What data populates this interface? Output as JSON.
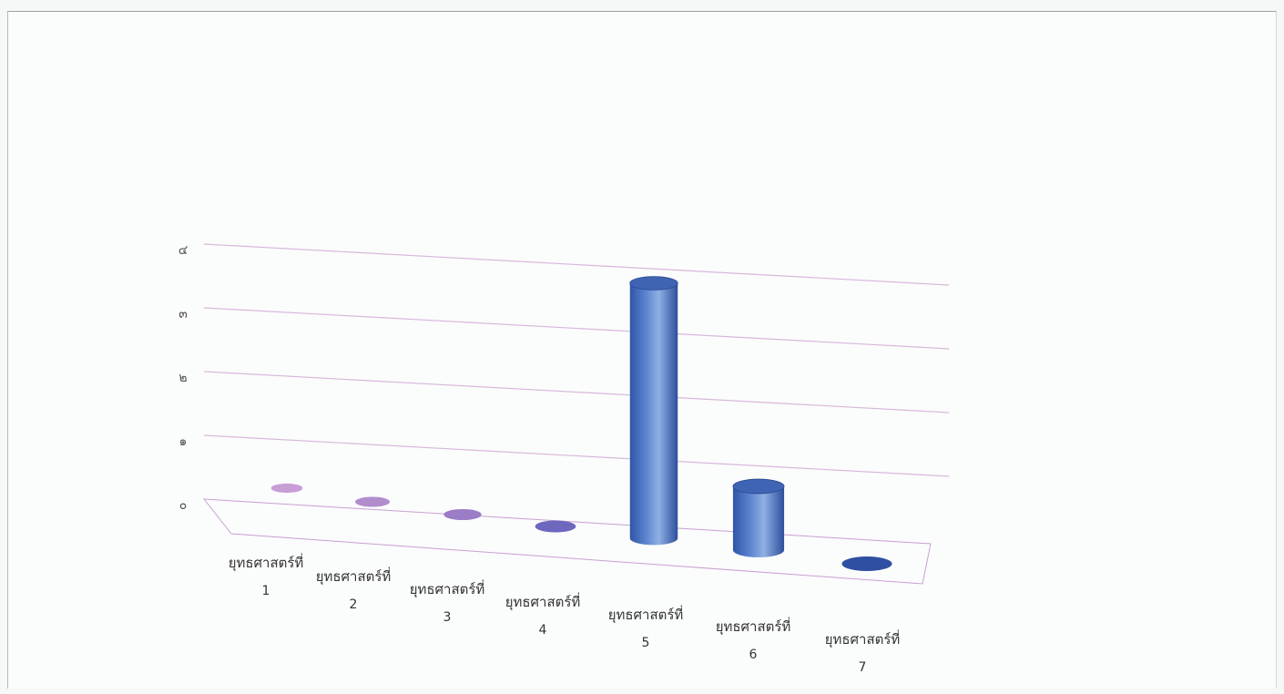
{
  "chart_data": {
    "type": "bar",
    "style": "3d-cylinder",
    "categories": [
      [
        "ยุทธศาสตร์ที่",
        "1"
      ],
      [
        "ยุทธศาสตร์ที่",
        "2"
      ],
      [
        "ยุทธศาสตร์ที่",
        "3"
      ],
      [
        "ยุทธศาสตร์ที่",
        "4"
      ],
      [
        "ยุทธศาสตร์ที่",
        "5"
      ],
      [
        "ยุทธศาสตร์ที่",
        "6"
      ],
      [
        "ยุทธศาสตร์ที่",
        "7"
      ]
    ],
    "values": [
      0,
      0,
      0,
      0,
      4,
      1,
      0
    ],
    "ytick_labels": [
      "๐",
      "๑",
      "๒",
      "๓",
      "๔"
    ],
    "ylim": [
      0,
      4
    ],
    "grid": true,
    "legend": "none",
    "title": "",
    "xlabel": "",
    "ylabel": "",
    "colors": {
      "bar_dark": "#2f56a8",
      "bar_mid": "#5f86d0",
      "bar_light": "#9fbde8",
      "top_cap": "#3f64b4",
      "gridline": "#d7b8dc",
      "floor_edge": "#c9a0d2"
    }
  }
}
